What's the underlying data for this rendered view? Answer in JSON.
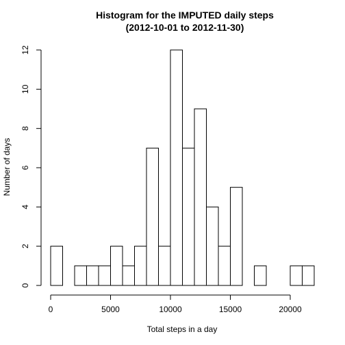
{
  "chart_data": {
    "type": "bar",
    "title": "Histogram for the IMPUTED daily steps",
    "subtitle": "(2012-10-01 to 2012-11-30)",
    "xlabel": "Total steps in a day",
    "ylabel": "Number of days",
    "bin_width": 1000,
    "bins": [
      {
        "from": 0,
        "to": 1000,
        "count": 2
      },
      {
        "from": 1000,
        "to": 2000,
        "count": 0
      },
      {
        "from": 2000,
        "to": 3000,
        "count": 1
      },
      {
        "from": 3000,
        "to": 4000,
        "count": 1
      },
      {
        "from": 4000,
        "to": 5000,
        "count": 1
      },
      {
        "from": 5000,
        "to": 6000,
        "count": 2
      },
      {
        "from": 6000,
        "to": 7000,
        "count": 1
      },
      {
        "from": 7000,
        "to": 8000,
        "count": 2
      },
      {
        "from": 8000,
        "to": 9000,
        "count": 7
      },
      {
        "from": 9000,
        "to": 10000,
        "count": 2
      },
      {
        "from": 10000,
        "to": 11000,
        "count": 12
      },
      {
        "from": 11000,
        "to": 12000,
        "count": 7
      },
      {
        "from": 12000,
        "to": 13000,
        "count": 9
      },
      {
        "from": 13000,
        "to": 14000,
        "count": 4
      },
      {
        "from": 14000,
        "to": 15000,
        "count": 2
      },
      {
        "from": 15000,
        "to": 16000,
        "count": 5
      },
      {
        "from": 16000,
        "to": 17000,
        "count": 0
      },
      {
        "from": 17000,
        "to": 18000,
        "count": 1
      },
      {
        "from": 18000,
        "to": 19000,
        "count": 0
      },
      {
        "from": 19000,
        "to": 20000,
        "count": 0
      },
      {
        "from": 20000,
        "to": 21000,
        "count": 1
      },
      {
        "from": 21000,
        "to": 22000,
        "count": 1
      }
    ],
    "xlim": [
      0,
      22000
    ],
    "ylim": [
      0,
      12
    ],
    "x_ticks": [
      0,
      5000,
      10000,
      15000,
      20000
    ],
    "y_ticks": [
      0,
      2,
      4,
      6,
      8,
      10,
      12
    ],
    "grid": false,
    "legend": "none",
    "bar_fill": "#ffffff",
    "bar_stroke": "#000000"
  }
}
